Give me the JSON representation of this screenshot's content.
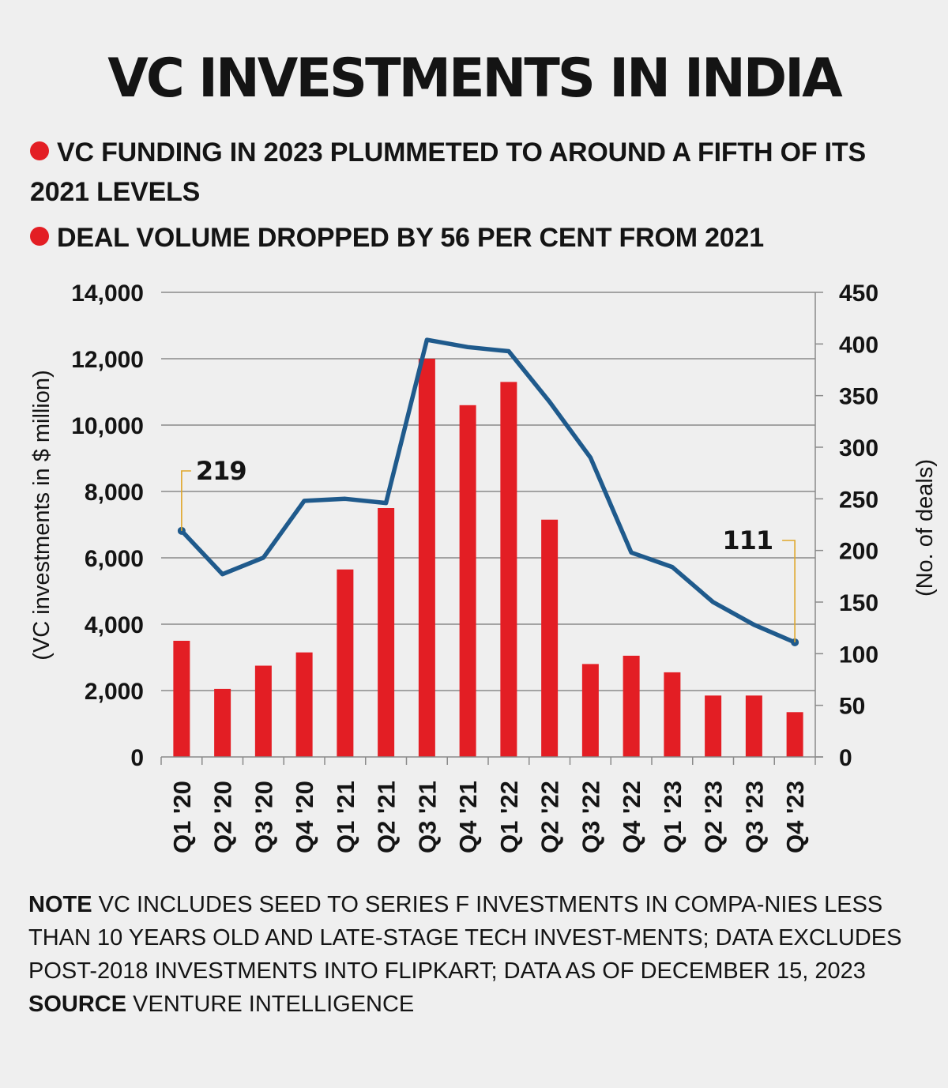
{
  "title": "VC INVESTMENTS IN INDIA",
  "bullets": [
    "VC FUNDING IN 2023 PLUMMETED TO AROUND A FIFTH OF ITS 2021 LEVELS",
    "DEAL VOLUME DROPPED BY 56 PER CENT FROM 2021"
  ],
  "note": {
    "label": "NOTE",
    "text": " VC INCLUDES SEED TO SERIES F INVESTMENTS IN COMPA-NIES LESS THAN 10 YEARS OLD AND LATE-STAGE TECH INVEST-MENTS; DATA EXCLUDES POST-2018 INVESTMENTS INTO FLIPKART; DATA AS OF DECEMBER 15, 2023"
  },
  "source": {
    "label": "SOURCE",
    "text": " VENTURE INTELLIGENCE"
  },
  "colors": {
    "bars": "#e31e24",
    "line": "#1f5a8c",
    "callout": "#e0a72a",
    "bullet_dot": "#e31e24"
  },
  "chart_data": {
    "type": "bar",
    "categories": [
      "Q1 '20",
      "Q2 '20",
      "Q3 '20",
      "Q4 '20",
      "Q1 '21",
      "Q2 '21",
      "Q3 '21",
      "Q4 '21",
      "Q1 '22",
      "Q2 '22",
      "Q3 '22",
      "Q4 '22",
      "Q1 '23",
      "Q2 '23",
      "Q3 '23",
      "Q4 '23"
    ],
    "series": [
      {
        "type": "bar",
        "axis": "left",
        "values": [
          3500,
          2050,
          2750,
          3150,
          5650,
          7500,
          12000,
          10600,
          11300,
          7150,
          2800,
          3050,
          2550,
          1850,
          1850,
          1350
        ]
      },
      {
        "type": "line",
        "axis": "right",
        "values": [
          219,
          177,
          193,
          248,
          250,
          246,
          404,
          397,
          393,
          344,
          290,
          198,
          184,
          150,
          128,
          111
        ]
      }
    ],
    "ylabel": "(VC investments in $ million)",
    "ylabel_right": "(No. of deals)",
    "ylim": [
      0,
      14000
    ],
    "ylim_right": [
      0,
      450
    ],
    "yticks": [
      "0",
      "2,000",
      "4,000",
      "6,000",
      "8,000",
      "10,000",
      "12,000",
      "14,000"
    ],
    "yticks_right": [
      "0",
      "50",
      "100",
      "150",
      "200",
      "250",
      "300",
      "350",
      "400",
      "450"
    ],
    "annotations": [
      {
        "label": "219",
        "category_index": 0
      },
      {
        "label": "111",
        "category_index": 15
      }
    ],
    "grid": true
  }
}
